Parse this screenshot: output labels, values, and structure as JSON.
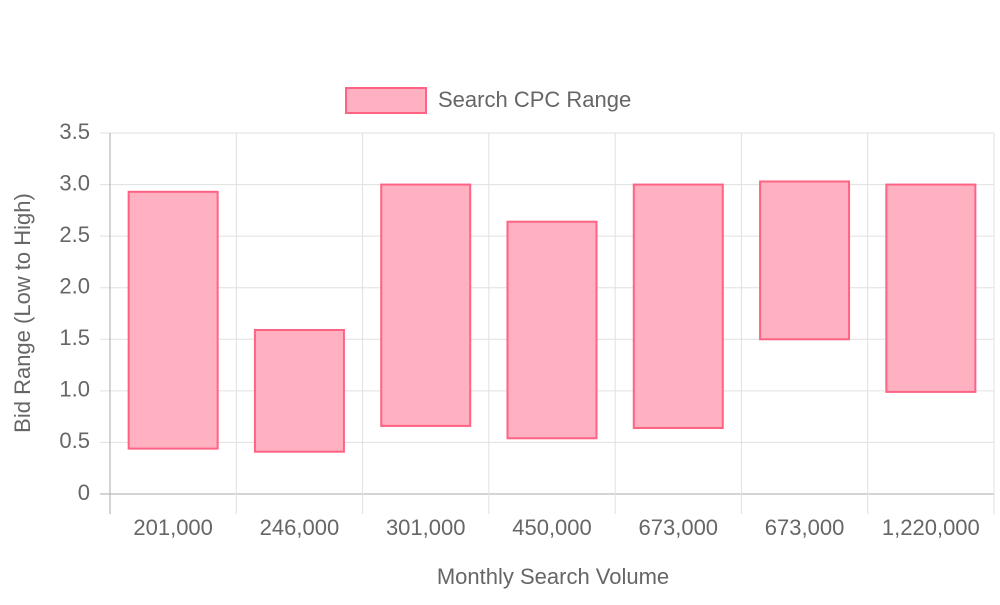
{
  "chart_data": {
    "type": "floating-bar",
    "legend": "top",
    "x_label": "Monthly Search Volume",
    "y_label": "Bid Range (Low to High)",
    "categories": [
      "201,000",
      "246,000",
      "301,000",
      "450,000",
      "673,000",
      "673,000",
      "1,220,000"
    ],
    "series": [
      {
        "name": "Search CPC Range",
        "color": "#ff6384",
        "fill": "#ffb1c1",
        "lows": [
          0.44,
          0.41,
          0.66,
          0.54,
          0.64,
          1.5,
          0.99
        ],
        "highs": [
          2.93,
          1.59,
          3.0,
          2.64,
          3.0,
          3.03,
          3.0
        ]
      }
    ],
    "ylim": [
      0,
      3.5
    ],
    "yticks": [
      0,
      0.5,
      {
        "value": 1,
        "label": "1.0"
      },
      1.5,
      {
        "value": 2,
        "label": "2.0"
      },
      2.5,
      {
        "value": 3,
        "label": "3.0"
      },
      3.5
    ],
    "grid": true
  }
}
